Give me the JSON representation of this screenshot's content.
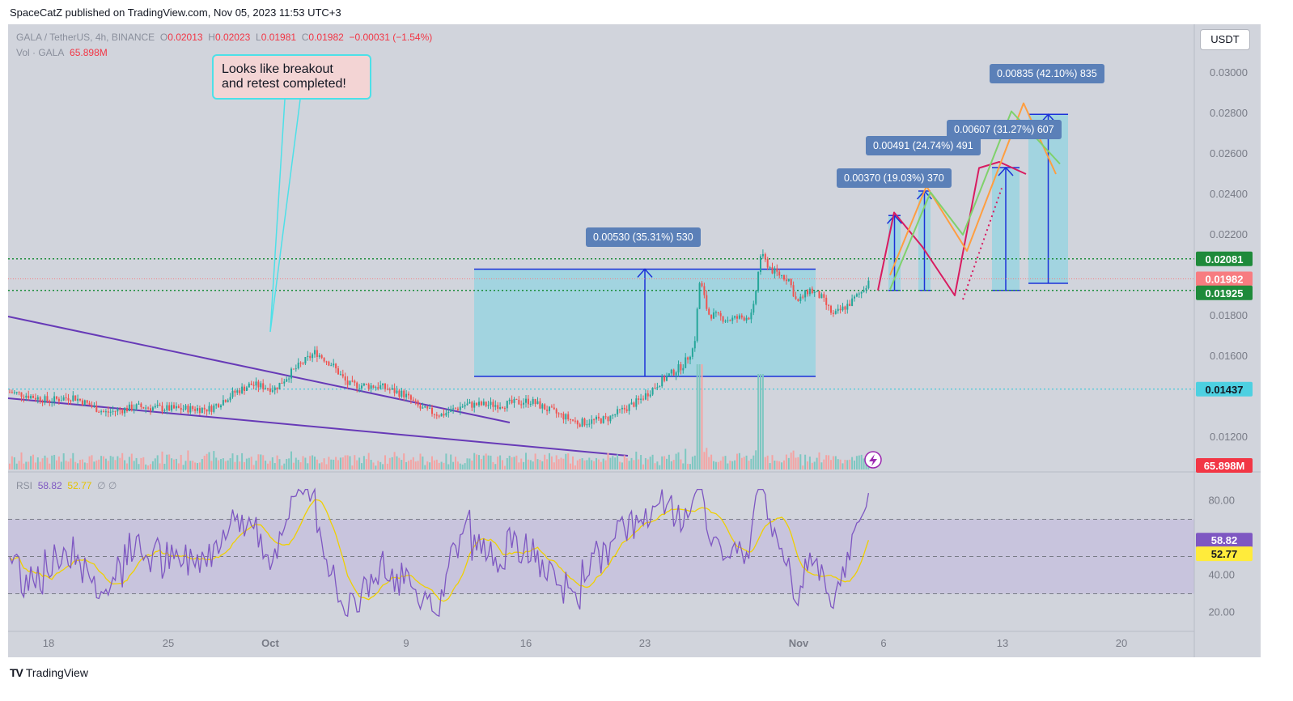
{
  "header": {
    "publisher": "SpaceCatZ published on TradingView.com, Nov 05, 2023 11:53 UTC+3"
  },
  "legend": {
    "symbol": "GALA / TetherUS, 4h, BINANCE",
    "o_label": "O",
    "o_value": "0.02013",
    "h_label": "H",
    "h_value": "0.02023",
    "l_label": "L",
    "l_value": "0.01981",
    "c_label": "C",
    "c_value": "0.01982",
    "change": "−0.00031 (−1.54%)",
    "vol_label": "Vol · GALA",
    "vol_value": "65.898M",
    "rsi_label": "RSI",
    "rsi_value": "58.82",
    "rsi_ma": "52.77",
    "rsi_extra": "∅ ∅"
  },
  "currency_button": "USDT",
  "annotation": {
    "line1": "Looks like breakout",
    "line2": "and retest completed!"
  },
  "measure_labels": [
    {
      "text": "0.00530 (35.31%) 530"
    },
    {
      "text": "0.00370 (19.03%) 370"
    },
    {
      "text": "0.00491 (24.74%) 491"
    },
    {
      "text": "0.00607 (31.27%) 607"
    },
    {
      "text": "0.00835 (42.10%) 835"
    }
  ],
  "price_badges": {
    "level_top": "0.02081",
    "last_price": "0.01982",
    "level_bottom": "0.01925",
    "level_low": "0.01437",
    "volume": "65.898M",
    "rsi": "58.82",
    "rsi_ma": "52.77"
  },
  "colors": {
    "background": "#d1d4dc",
    "up": "#26a69a",
    "down": "#ef5350",
    "rectangle": "#9ad4e0",
    "rsi_line": "#7e57c2",
    "rsi_ma": "#f0d000",
    "trendline": "#673ab7",
    "dotted_level": "#1b8c3a",
    "badge_green": "#1e8a3a",
    "badge_red": "#f77c80",
    "badge_cyan": "#4dd0e1",
    "badge_vol": "#f23645",
    "badge_rsi": "#7e57c2",
    "badge_rsi_ma": "#ffeb3b"
  },
  "chart_data": {
    "type": "candlestick",
    "price_axis": {
      "ticks": [
        "0.03000",
        "0.02800",
        "0.02600",
        "0.02400",
        "0.02200",
        "0.01800",
        "0.01600",
        "0.01200"
      ],
      "range": [
        0.0104,
        0.0308
      ]
    },
    "rsi_axis": {
      "ticks": [
        "80.00",
        "40.00",
        "20.00"
      ],
      "range": [
        12,
        88
      ],
      "levels": [
        70,
        50,
        30
      ]
    },
    "x_axis": {
      "ticks": [
        "18",
        "25",
        "Oct",
        "9",
        "16",
        "23",
        "Nov",
        "6",
        "13",
        "20"
      ]
    },
    "horizontal_levels": [
      0.02081,
      0.01925,
      0.01437
    ],
    "last_price": 0.01982,
    "price_path": [
      {
        "x": 0,
        "y": 0.0143
      },
      {
        "x": 30,
        "y": 0.0141
      },
      {
        "x": 60,
        "y": 0.0138
      },
      {
        "x": 90,
        "y": 0.014
      },
      {
        "x": 130,
        "y": 0.0132
      },
      {
        "x": 170,
        "y": 0.0135
      },
      {
        "x": 210,
        "y": 0.0134
      },
      {
        "x": 260,
        "y": 0.0134
      },
      {
        "x": 290,
        "y": 0.0142
      },
      {
        "x": 310,
        "y": 0.0146
      },
      {
        "x": 340,
        "y": 0.0144
      },
      {
        "x": 360,
        "y": 0.0152
      },
      {
        "x": 390,
        "y": 0.0162
      },
      {
        "x": 410,
        "y": 0.0156
      },
      {
        "x": 430,
        "y": 0.0146
      },
      {
        "x": 470,
        "y": 0.0145
      },
      {
        "x": 500,
        "y": 0.0141
      },
      {
        "x": 520,
        "y": 0.0134
      },
      {
        "x": 545,
        "y": 0.0131
      },
      {
        "x": 575,
        "y": 0.0136
      },
      {
        "x": 620,
        "y": 0.0136
      },
      {
        "x": 655,
        "y": 0.0138
      },
      {
        "x": 680,
        "y": 0.0133
      },
      {
        "x": 715,
        "y": 0.0127
      },
      {
        "x": 750,
        "y": 0.0129
      },
      {
        "x": 790,
        "y": 0.0138
      },
      {
        "x": 815,
        "y": 0.0147
      },
      {
        "x": 845,
        "y": 0.0156
      },
      {
        "x": 858,
        "y": 0.0165
      },
      {
        "x": 865,
        "y": 0.0198
      },
      {
        "x": 875,
        "y": 0.0181
      },
      {
        "x": 900,
        "y": 0.0178
      },
      {
        "x": 930,
        "y": 0.018
      },
      {
        "x": 940,
        "y": 0.021
      },
      {
        "x": 955,
        "y": 0.0202
      },
      {
        "x": 975,
        "y": 0.0198
      },
      {
        "x": 985,
        "y": 0.0186
      },
      {
        "x": 1000,
        "y": 0.0193
      },
      {
        "x": 1015,
        "y": 0.0189
      },
      {
        "x": 1030,
        "y": 0.018
      },
      {
        "x": 1050,
        "y": 0.0186
      },
      {
        "x": 1065,
        "y": 0.0192
      },
      {
        "x": 1076,
        "y": 0.0199
      }
    ],
    "projection_paths": [
      {
        "color": "#d81b60",
        "points": [
          [
            1085,
            0.01925
          ],
          [
            1105,
            0.0231
          ],
          [
            1140,
            0.0214
          ],
          [
            1180,
            0.019
          ],
          [
            1210,
            0.0253
          ],
          [
            1235,
            0.0256
          ],
          [
            1268,
            0.025
          ]
        ]
      },
      {
        "color": "#ff9e40",
        "points": [
          [
            1100,
            0.02
          ],
          [
            1145,
            0.0244
          ],
          [
            1195,
            0.0212
          ],
          [
            1265,
            0.0285
          ],
          [
            1305,
            0.025
          ]
        ]
      },
      {
        "color": "#7fd16b",
        "points": [
          [
            1100,
            0.0193
          ],
          [
            1150,
            0.0241
          ],
          [
            1190,
            0.022
          ],
          [
            1250,
            0.0281
          ],
          [
            1310,
            0.0255
          ]
        ]
      }
    ],
    "measure_boxes": [
      {
        "x0": 586,
        "x1": 1008,
        "from": 0.015,
        "to": 0.0203
      },
      {
        "x0": 1098,
        "x1": 1113,
        "from": 0.01925,
        "to": 0.02295
      },
      {
        "x0": 1135,
        "x1": 1150,
        "from": 0.01925,
        "to": 0.02416
      },
      {
        "x0": 1226,
        "x1": 1260,
        "from": 0.01925,
        "to": 0.02532
      },
      {
        "x0": 1271,
        "x1": 1320,
        "from": 0.0196,
        "to": 0.02795
      }
    ]
  }
}
